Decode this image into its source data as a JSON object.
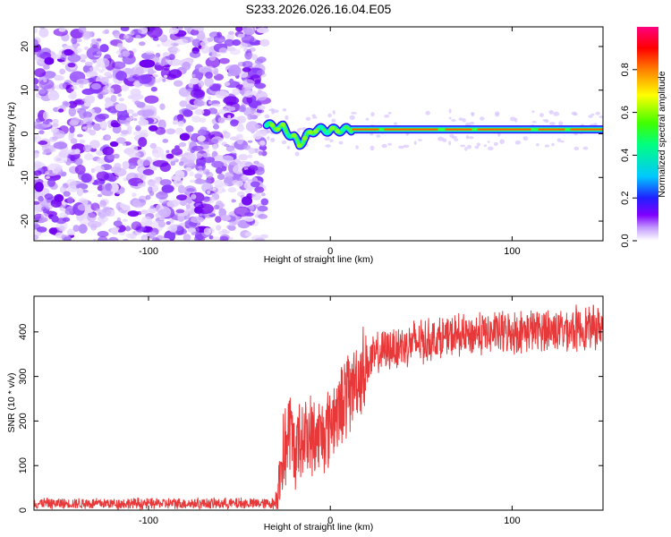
{
  "title": "S233.2026.026.16.04.E05",
  "chart_data": [
    {
      "type": "heatmap",
      "name": "spectrogram",
      "xlabel": "Height of straight line (km)",
      "ylabel": "Frequency (Hz)",
      "xlim": [
        -163,
        150
      ],
      "ylim": [
        -24.5,
        24.5
      ],
      "xticks": [
        -100,
        0,
        100
      ],
      "yticks": [
        -20,
        -10,
        0,
        10,
        20
      ],
      "noise_region_x": [
        -163,
        -38
      ],
      "signal_frequency_trace": [
        {
          "x": -35,
          "f": 2.0
        },
        {
          "x": -30,
          "f": 1.5
        },
        {
          "x": -26,
          "f": 1.5
        },
        {
          "x": -24,
          "f": 0.5
        },
        {
          "x": -20,
          "f": -0.8
        },
        {
          "x": -17,
          "f": -2.5
        },
        {
          "x": -13,
          "f": -0.5
        },
        {
          "x": -8,
          "f": 1.0
        },
        {
          "x": 0,
          "f": 0.8
        },
        {
          "x": 12,
          "f": 1.0
        },
        {
          "x": 60,
          "f": 1.0
        },
        {
          "x": 150,
          "f": 1.0
        }
      ],
      "colorbar": {
        "label": "Normalized spectral amplitude",
        "ticks": [
          0.0,
          0.2,
          0.4,
          0.6,
          0.8
        ],
        "tick_labels": [
          "0.0",
          "0.2",
          "0.4",
          "0.6",
          "0.8"
        ],
        "range": [
          0,
          1
        ]
      }
    },
    {
      "type": "line",
      "name": "snr",
      "xlabel": "Height of straight line (km)",
      "ylabel": "SNR (10 * v/v)",
      "xlim": [
        -163,
        150
      ],
      "ylim": [
        0,
        480
      ],
      "xticks": [
        -100,
        0,
        100
      ],
      "yticks": [
        0,
        100,
        200,
        300,
        400
      ],
      "color": "#e8393a",
      "trend": [
        {
          "x": -163,
          "y": 15
        },
        {
          "x": -30,
          "y": 15
        },
        {
          "x": -27,
          "y": 100
        },
        {
          "x": -22,
          "y": 180
        },
        {
          "x": -20,
          "y": 130
        },
        {
          "x": -15,
          "y": 170
        },
        {
          "x": -8,
          "y": 160
        },
        {
          "x": -3,
          "y": 180
        },
        {
          "x": 5,
          "y": 230
        },
        {
          "x": 12,
          "y": 280
        },
        {
          "x": 20,
          "y": 330
        },
        {
          "x": 30,
          "y": 360
        },
        {
          "x": 45,
          "y": 375
        },
        {
          "x": 60,
          "y": 385
        },
        {
          "x": 80,
          "y": 395
        },
        {
          "x": 100,
          "y": 400
        },
        {
          "x": 120,
          "y": 405
        },
        {
          "x": 150,
          "y": 410
        }
      ]
    }
  ]
}
